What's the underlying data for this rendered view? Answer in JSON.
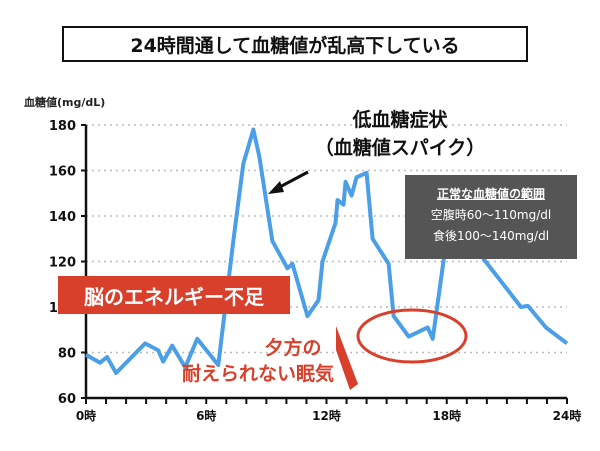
{
  "title": "24時間通して血糖値が乱高下している",
  "annotations": {
    "energy_shortage": "脳のエネルギー不足",
    "drowsiness_line1": "夕方の",
    "drowsiness_line2": "耐えられない眠気",
    "spike_line1": "低血糖症状",
    "spike_line2": "（血糖値スパイク）",
    "normal_range_title": "正常な血糖値の範囲",
    "normal_range_fasting": "空腹時60〜110mg/dl",
    "normal_range_after_meal": "食後100〜140mg/dl"
  },
  "colors": {
    "line": "#4a9fe6",
    "accent_red": "#d9402b",
    "grid": "#bbbbbb",
    "info_box": "#555555"
  },
  "chart_data": {
    "type": "line",
    "title": "24時間通して血糖値が乱高下している",
    "xlabel": "",
    "ylabel": "血糖値(mg/dL)",
    "xlim": [
      0,
      24
    ],
    "ylim": [
      60,
      180
    ],
    "x_ticks": [
      0,
      6,
      12,
      18,
      24
    ],
    "x_tick_labels": [
      "0時",
      "6時",
      "12時",
      "18時",
      "24時"
    ],
    "y_ticks": [
      60,
      80,
      100,
      120,
      140,
      160,
      180
    ],
    "y_tick_labels": [
      "60",
      "80",
      "100",
      "120",
      "140",
      "160",
      "180"
    ],
    "grid": "horizontal dotted",
    "x": [
      0,
      0.7,
      1.05,
      1.5,
      2.95,
      3.6,
      3.85,
      4.3,
      4.95,
      5.55,
      6.6,
      7.35,
      7.85,
      8.35,
      8.65,
      9.3,
      10.05,
      10.3,
      11.05,
      11.6,
      11.8,
      12.45,
      12.55,
      12.85,
      12.95,
      13.25,
      13.5,
      14.0,
      14.3,
      15.1,
      15.35,
      16.1,
      17.05,
      17.3,
      17.85,
      18.6,
      19.85,
      21.7,
      22.05,
      22.95,
      24.0
    ],
    "y": [
      79,
      75.5,
      78,
      71,
      84,
      81,
      76,
      83,
      73.5,
      86,
      74.5,
      129,
      163,
      178,
      166,
      129,
      117,
      119,
      96,
      103,
      120,
      137,
      147,
      145,
      155,
      149,
      157,
      159,
      130,
      119,
      96,
      87,
      91,
      86,
      121,
      140,
      121,
      100,
      100.5,
      91,
      84
    ]
  }
}
